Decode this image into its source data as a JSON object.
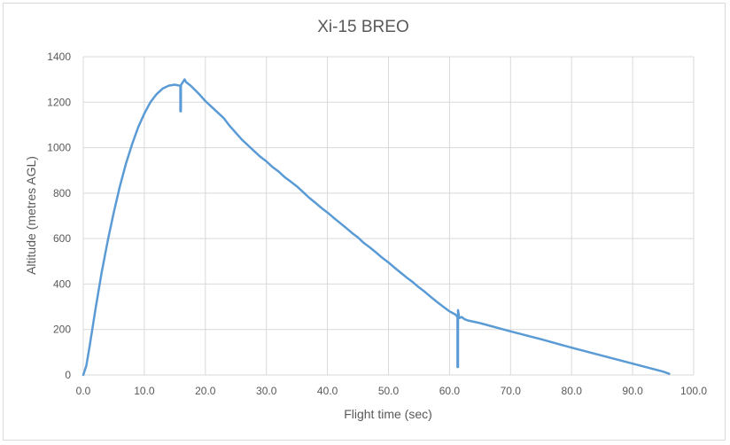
{
  "chart_data": {
    "type": "line",
    "title": "Xi-15 BREO",
    "xlabel": "Flight time (sec)",
    "ylabel": "Altitude (metres AGL)",
    "xlim": [
      0,
      100
    ],
    "ylim": [
      0,
      1400
    ],
    "x_ticks": [
      "0.0",
      "10.0",
      "20.0",
      "30.0",
      "40.0",
      "50.0",
      "60.0",
      "70.0",
      "80.0",
      "90.0",
      "100.0"
    ],
    "y_ticks": [
      "0",
      "200",
      "400",
      "600",
      "800",
      "1000",
      "1200",
      "1400"
    ],
    "grid": "vertical and horizontal major gridlines",
    "legend": "none",
    "colors": {
      "series": "#5b9bd5",
      "grid": "#d9d9d9",
      "text": "#595959"
    },
    "series": [
      {
        "x": [
          0,
          0.5,
          1,
          2,
          3,
          4,
          5,
          6,
          7,
          8,
          9,
          10,
          11,
          12,
          13,
          14,
          15,
          15.9,
          15.9,
          16.0,
          16.0,
          16.6,
          16.8,
          17.0,
          17.5,
          18,
          19,
          20,
          21,
          22,
          23,
          24,
          25,
          26,
          27,
          28,
          29,
          30,
          31,
          32,
          33,
          34,
          35,
          36,
          37,
          38,
          39,
          40,
          41,
          42,
          43,
          44,
          45,
          46,
          47,
          48,
          49,
          50,
          51,
          52,
          53,
          54,
          55,
          56,
          57,
          58,
          59,
          60,
          61.0,
          61.3,
          61.3,
          61.4,
          61.4,
          61.6,
          62.0,
          62.5,
          63,
          65,
          70,
          75,
          80,
          85,
          90,
          95,
          96
        ],
        "y": [
          0,
          40,
          120,
          290,
          450,
          590,
          715,
          830,
          930,
          1015,
          1090,
          1150,
          1200,
          1235,
          1260,
          1273,
          1277,
          1272,
          1160,
          1160,
          1275,
          1300,
          1290,
          1285,
          1275,
          1262,
          1235,
          1205,
          1180,
          1155,
          1130,
          1095,
          1065,
          1035,
          1010,
          985,
          960,
          940,
          915,
          895,
          870,
          850,
          830,
          805,
          780,
          758,
          735,
          715,
          692,
          670,
          648,
          625,
          605,
          580,
          560,
          538,
          515,
          495,
          472,
          450,
          428,
          408,
          385,
          365,
          342,
          320,
          300,
          280,
          265,
          255,
          35,
          35,
          285,
          250,
          255,
          245,
          240,
          228,
          192,
          157,
          120,
          85,
          50,
          15,
          5
        ]
      }
    ]
  }
}
